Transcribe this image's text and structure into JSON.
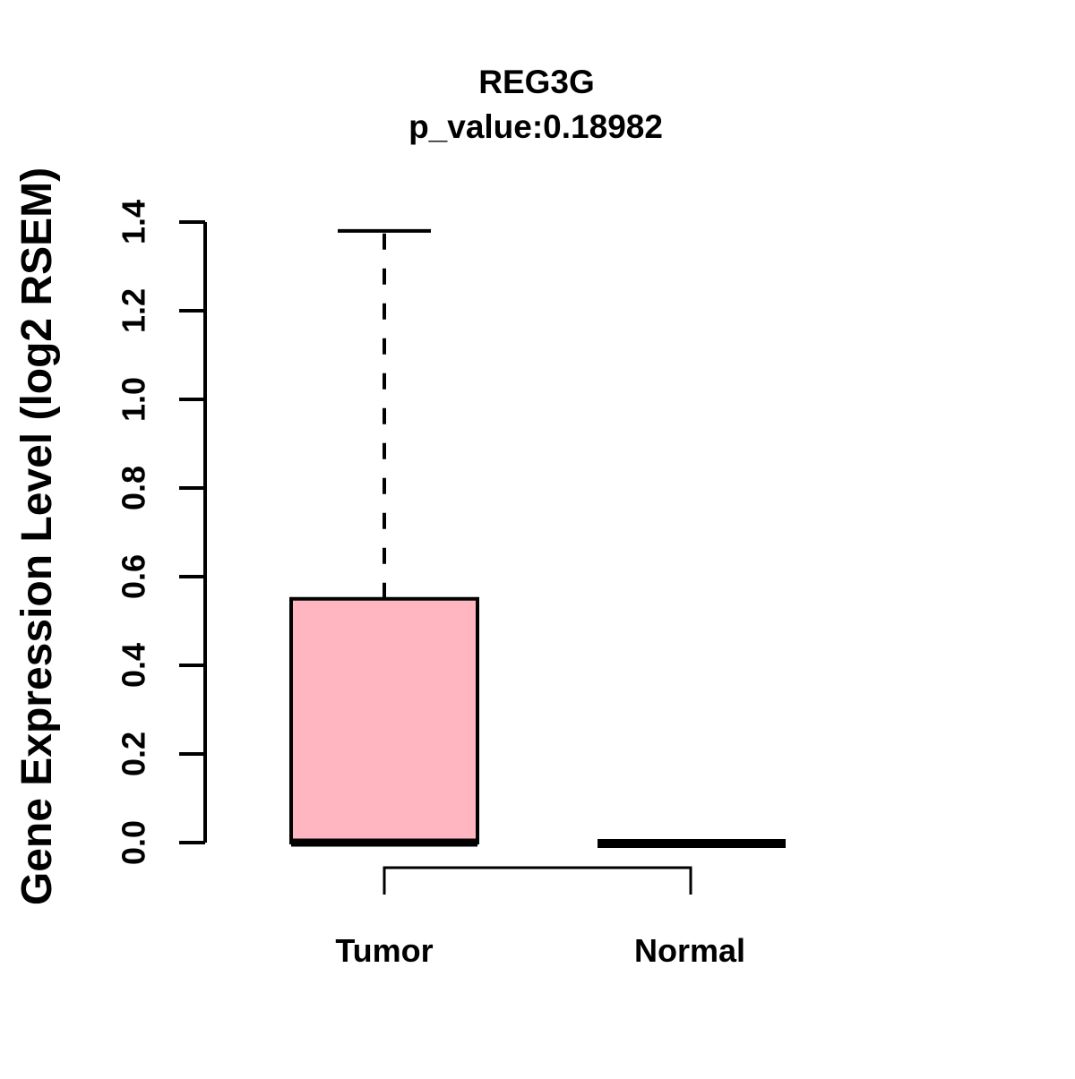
{
  "figure": {
    "background_color": "#FFFFFF",
    "line_color": "#000000"
  },
  "chart_data": {
    "type": "boxplot",
    "title": "REG3G",
    "subtitle": "p_value:0.18982",
    "p_value": "0.18982",
    "ylabel": "Gene Expression Level (log2 RSEM)",
    "xlabel": "",
    "categories": [
      "Tumor",
      "Normal"
    ],
    "ylim": [
      0.0,
      1.4
    ],
    "yticks": [
      0.0,
      0.2,
      0.4,
      0.6,
      0.8,
      1.0,
      1.2,
      1.4
    ],
    "ytick_labels": [
      "0.0",
      "0.2",
      "0.4",
      "0.6",
      "0.8",
      "1.0",
      "1.2",
      "1.4"
    ],
    "grid": false,
    "legend": null,
    "series": [
      {
        "name": "Tumor",
        "min": 0.0,
        "q1": 0.0,
        "median": 0.0,
        "q3": 0.55,
        "max": 1.38,
        "box_fill": "#FFB6C1",
        "whisker_style": "dashed"
      },
      {
        "name": "Normal",
        "min": 0.0,
        "q1": 0.0,
        "median": 0.0,
        "q3": 0.0,
        "max": 0.0,
        "box_fill": "#FFB6C1",
        "whisker_style": "none"
      }
    ],
    "comparison_bracket": {
      "between": [
        "Tumor",
        "Normal"
      ]
    }
  }
}
